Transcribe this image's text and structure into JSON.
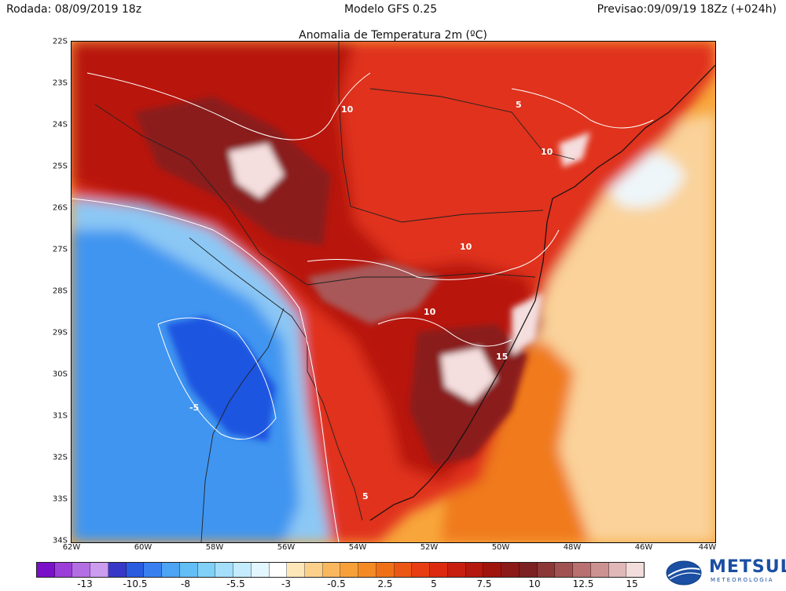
{
  "header": {
    "left": "Rodada: 08/09/2019 18z",
    "center": "Modelo GFS 0.25",
    "right": "Previsao:09/09/19 18Zz (+024h)"
  },
  "map": {
    "title": "Anomalia de Temperatura 2m (ºC)",
    "lat_labels": [
      "22S",
      "23S",
      "24S",
      "25S",
      "26S",
      "27S",
      "28S",
      "29S",
      "30S",
      "31S",
      "32S",
      "33S",
      "34S"
    ],
    "lon_labels": [
      "62W",
      "60W",
      "58W",
      "56W",
      "54W",
      "52W",
      "50W",
      "48W",
      "46W",
      "44W"
    ],
    "contour_labels": [
      "10",
      "5",
      "10",
      "10",
      "10",
      "15",
      "-5",
      "5"
    ],
    "colors": {
      "strong_cold": "#1a55e0",
      "cold": "#3f95f0",
      "light_cold": "#8cc8f5",
      "near_zero": "#eef6fa",
      "warm_light": "#fad29a",
      "warm": "#f8a63c",
      "warm_strong": "#f07a1a",
      "hot": "#e0301a",
      "very_hot": "#b8160f",
      "extreme": "#8a1f1c",
      "extreme_plus": "#a85858",
      "max": "#f4dede"
    }
  },
  "colorbar": {
    "labels": [
      "-13",
      "-10.5",
      "-8",
      "-5.5",
      "-3",
      "-0.5",
      "2.5",
      "5",
      "7.5",
      "10",
      "12.5",
      "15"
    ],
    "colors": [
      "#7a10c8",
      "#9b3fd8",
      "#b46ee4",
      "#cc9cee",
      "#3838c8",
      "#2a5ce0",
      "#3a7ff0",
      "#4ca4f2",
      "#62bef5",
      "#80d0f8",
      "#a4defa",
      "#c4ecfc",
      "#e4f6fd",
      "#ffffff",
      "#fde6b8",
      "#fbd08a",
      "#f9b85e",
      "#f7a03a",
      "#f48a24",
      "#f07018",
      "#ec5614",
      "#e83c12",
      "#dc2a10",
      "#c81e10",
      "#b4180e",
      "#a0140e",
      "#8c1a18",
      "#7c2222",
      "#8c3838",
      "#a05252",
      "#b87070",
      "#cc9292",
      "#e0b8b8",
      "#f2dcdc"
    ]
  },
  "logo": {
    "name": "METSUL",
    "tagline": "METEOROLOGIA"
  }
}
